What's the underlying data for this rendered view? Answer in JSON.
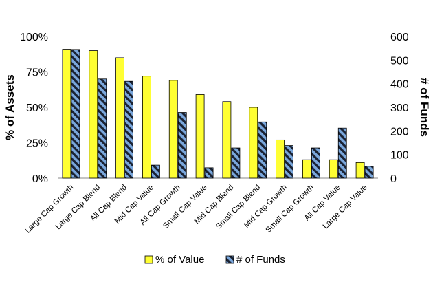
{
  "chart_data": {
    "type": "bar",
    "categories": [
      "Large Cap Growth",
      "Large Cap Blend",
      "All Cap Blend",
      "Mid Cap Value",
      "All Cap Growth",
      "Small Cap Value",
      "Mid Cap Blend",
      "Small Cap Blend",
      "Mid Cap Growth",
      "Small Cap Growth",
      "All Cap Value",
      "Large Cap Value"
    ],
    "series": [
      {
        "name": "% of Value",
        "axis": "left",
        "color": "#ffff33",
        "values": [
          91,
          90,
          85,
          72,
          69,
          59,
          54,
          50,
          27,
          13,
          13,
          11
        ]
      },
      {
        "name": "# of Funds",
        "axis": "right",
        "color": "#6ea0d8",
        "pattern": "diagonal-hatch",
        "values": [
          545,
          420,
          410,
          55,
          278,
          44,
          128,
          238,
          138,
          128,
          212,
          50
        ]
      }
    ],
    "y_left": {
      "label": "% of Assets",
      "ylim": [
        0,
        100
      ],
      "ticks": [
        "0%",
        "25%",
        "50%",
        "75%",
        "100%"
      ]
    },
    "y_right": {
      "label": "# of Funds",
      "ylim": [
        0,
        600
      ],
      "ticks": [
        "0",
        "100",
        "200",
        "300",
        "400",
        "500",
        "600"
      ]
    },
    "legend": {
      "position": "bottom",
      "items": [
        "% of Value",
        "# of Funds"
      ]
    },
    "grid": false
  }
}
